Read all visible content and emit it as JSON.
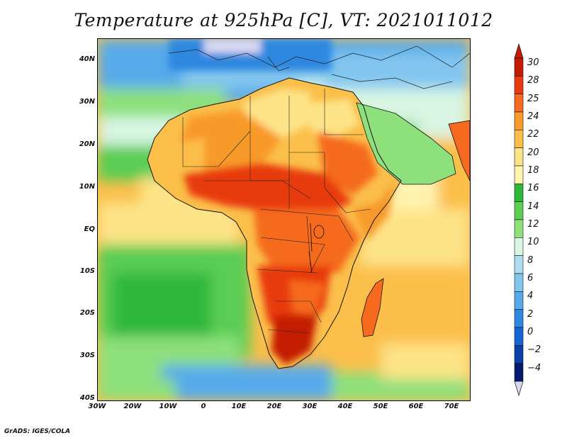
{
  "title": "Temperature at 925hPa [C], VT: 2021011012",
  "credit": "GrADS: IGES/COLA",
  "map": {
    "lat_labels": [
      "40N",
      "30N",
      "20N",
      "10N",
      "EQ",
      "10S",
      "20S",
      "30S",
      "40S"
    ],
    "lon_labels": [
      "30W",
      "20W",
      "10W",
      "0",
      "10E",
      "20E",
      "30E",
      "40E",
      "50E",
      "60E",
      "70E"
    ]
  },
  "colorbar": {
    "labels": [
      "30",
      "28",
      "25",
      "24",
      "22",
      "20",
      "18",
      "16",
      "14",
      "12",
      "10",
      "8",
      "6",
      "4",
      "2",
      "0",
      "−2",
      "−4"
    ],
    "colors": [
      "#c41a00",
      "#e83a10",
      "#f56a1f",
      "#f89a2c",
      "#fbbf4a",
      "#fde387",
      "#fff3b0",
      "#2eb83a",
      "#5acd52",
      "#8de07c",
      "#d7f5e2",
      "#aedcf2",
      "#82c6f0",
      "#56aaea",
      "#2f88e0",
      "#1565d2",
      "#0b3fa8",
      "#051c6e"
    ],
    "top_arrow_color": "#c41a00",
    "bottom_arrow_color": "#d8d8f0"
  }
}
